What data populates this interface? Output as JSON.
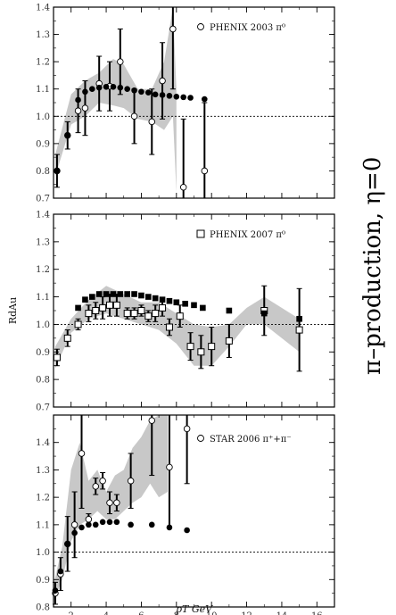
{
  "side_title": "π–production, η=0",
  "chart_data": [
    {
      "type": "scatter",
      "title": "",
      "legend_label": "PHENIX 2003 π⁰",
      "legend_marker": "open-circle",
      "legend_position": "top-right",
      "ylabel": "",
      "ylim": [
        0.7,
        1.4
      ],
      "xlim": [
        1,
        17
      ],
      "yticks": [
        0.7,
        0.8,
        0.9,
        1.0,
        1.1,
        1.2,
        1.3,
        1.4
      ],
      "reference_line": 1.0,
      "band": [
        [
          1.1,
          0.78,
          0.86
        ],
        [
          2.0,
          0.97,
          1.08
        ],
        [
          2.8,
          1.0,
          1.13
        ],
        [
          3.6,
          1.05,
          1.16
        ],
        [
          4.4,
          1.04,
          1.21
        ],
        [
          5.0,
          1.03,
          1.19
        ],
        [
          5.8,
          0.99,
          1.1
        ],
        [
          6.6,
          0.98,
          1.1
        ],
        [
          7.3,
          0.95,
          1.2
        ],
        [
          7.8,
          1.0,
          1.4
        ],
        [
          8.0,
          0.72,
          1.1
        ]
      ],
      "series": [
        {
          "marker": "open-circle",
          "points": [
            [
              1.2,
              0.8,
              0.06
            ],
            [
              1.8,
              0.93,
              0.05
            ],
            [
              2.4,
              1.02,
              0.08
            ],
            [
              2.8,
              1.03,
              0.1
            ],
            [
              3.6,
              1.12,
              0.1
            ],
            [
              4.2,
              1.11,
              0.09
            ],
            [
              4.8,
              1.2,
              0.12
            ],
            [
              5.6,
              1.0,
              0.1
            ],
            [
              6.6,
              0.98,
              0.12
            ],
            [
              7.2,
              1.13,
              0.14
            ],
            [
              7.8,
              1.32,
              0.22
            ],
            [
              8.4,
              0.74,
              0.25
            ],
            [
              9.6,
              0.8,
              0.25
            ]
          ]
        },
        {
          "marker": "filled-circle",
          "points": [
            [
              1.2,
              0.8
            ],
            [
              1.8,
              0.93
            ],
            [
              2.4,
              1.06
            ],
            [
              2.8,
              1.09
            ],
            [
              3.2,
              1.1
            ],
            [
              3.6,
              1.105
            ],
            [
              4.0,
              1.108
            ],
            [
              4.4,
              1.108
            ],
            [
              4.8,
              1.105
            ],
            [
              5.2,
              1.1
            ],
            [
              5.6,
              1.095
            ],
            [
              6.0,
              1.09
            ],
            [
              6.4,
              1.087
            ],
            [
              6.8,
              1.08
            ],
            [
              7.2,
              1.078
            ],
            [
              7.6,
              1.075
            ],
            [
              8.0,
              1.072
            ],
            [
              8.4,
              1.07
            ],
            [
              8.8,
              1.068
            ],
            [
              9.6,
              1.063
            ]
          ]
        }
      ]
    },
    {
      "type": "scatter",
      "title": "",
      "legend_label": "PHENIX 2007 π⁰",
      "legend_marker": "open-square",
      "legend_position": "top-right",
      "ylabel": "RdAu",
      "ylim": [
        0.7,
        1.4
      ],
      "xlim": [
        1,
        17
      ],
      "yticks": [
        0.7,
        0.8,
        0.9,
        1.0,
        1.1,
        1.2,
        1.3,
        1.4
      ],
      "reference_line": 1.0,
      "band": [
        [
          1.1,
          0.84,
          0.92
        ],
        [
          2.0,
          0.97,
          1.02
        ],
        [
          3.0,
          1.02,
          1.09
        ],
        [
          4.0,
          1.04,
          1.14
        ],
        [
          5.0,
          1.02,
          1.11
        ],
        [
          6.0,
          1.0,
          1.08
        ],
        [
          7.0,
          0.98,
          1.08
        ],
        [
          8.0,
          0.93,
          1.04
        ],
        [
          9.0,
          0.85,
          1.0
        ],
        [
          10.0,
          0.85,
          0.99
        ],
        [
          11.0,
          0.92,
          1.0
        ],
        [
          12.0,
          1.0,
          1.06
        ],
        [
          13.0,
          1.0,
          1.1
        ],
        [
          15.0,
          0.9,
          1.02
        ]
      ],
      "series": [
        {
          "marker": "open-square",
          "points": [
            [
              1.2,
              0.88,
              0.03
            ],
            [
              1.8,
              0.95,
              0.03
            ],
            [
              2.4,
              1.0,
              0.02
            ],
            [
              3.0,
              1.04,
              0.03
            ],
            [
              3.4,
              1.05,
              0.03
            ],
            [
              3.8,
              1.06,
              0.04
            ],
            [
              4.2,
              1.07,
              0.04
            ],
            [
              4.6,
              1.07,
              0.04
            ],
            [
              5.2,
              1.04,
              0.02
            ],
            [
              5.6,
              1.04,
              0.02
            ],
            [
              6.0,
              1.05,
              0.02
            ],
            [
              6.4,
              1.03,
              0.02
            ],
            [
              6.8,
              1.04,
              0.03
            ],
            [
              7.2,
              1.06,
              0.03
            ],
            [
              7.6,
              0.99,
              0.03
            ],
            [
              8.2,
              1.03,
              0.04
            ],
            [
              8.8,
              0.92,
              0.05
            ],
            [
              9.4,
              0.9,
              0.06
            ],
            [
              10.0,
              0.92,
              0.07
            ],
            [
              11.0,
              0.94,
              0.06
            ],
            [
              13.0,
              1.05,
              0.09
            ],
            [
              15.0,
              0.98,
              0.15
            ]
          ]
        },
        {
          "marker": "filled-square",
          "points": [
            [
              2.4,
              1.06
            ],
            [
              2.8,
              1.09
            ],
            [
              3.2,
              1.1
            ],
            [
              3.6,
              1.11
            ],
            [
              4.0,
              1.11
            ],
            [
              4.4,
              1.11
            ],
            [
              4.8,
              1.11
            ],
            [
              5.2,
              1.11
            ],
            [
              5.6,
              1.11
            ],
            [
              6.0,
              1.105
            ],
            [
              6.4,
              1.1
            ],
            [
              6.8,
              1.095
            ],
            [
              7.2,
              1.09
            ],
            [
              7.6,
              1.085
            ],
            [
              8.0,
              1.08
            ],
            [
              8.5,
              1.075
            ],
            [
              9.0,
              1.07
            ],
            [
              9.5,
              1.06
            ],
            [
              11.0,
              1.05
            ],
            [
              13.0,
              1.04
            ],
            [
              15.0,
              1.02
            ]
          ]
        }
      ]
    },
    {
      "type": "scatter",
      "title": "",
      "legend_label": "STAR 2006 π⁺+π⁻",
      "legend_marker": "open-circle",
      "legend_position": "top-right",
      "ylabel": "",
      "xlabel": "pT GeV",
      "ylim": [
        0.8,
        1.5
      ],
      "xlim": [
        1,
        17
      ],
      "xticks": [
        2,
        4,
        6,
        8,
        10,
        12,
        14,
        16
      ],
      "yticks": [
        0.8,
        0.9,
        1.0,
        1.1,
        1.2,
        1.3,
        1.4
      ],
      "reference_line": 1.0,
      "band": [
        [
          1.0,
          0.82,
          0.88
        ],
        [
          1.5,
          0.9,
          1.02
        ],
        [
          2.0,
          1.04,
          1.3
        ],
        [
          2.5,
          1.1,
          1.4
        ],
        [
          3.0,
          1.12,
          1.26
        ],
        [
          3.5,
          1.15,
          1.3
        ],
        [
          4.0,
          1.12,
          1.22
        ],
        [
          4.5,
          1.12,
          1.28
        ],
        [
          5.0,
          1.15,
          1.3
        ],
        [
          5.5,
          1.18,
          1.38
        ],
        [
          6.0,
          1.2,
          1.42
        ],
        [
          6.5,
          1.25,
          1.48
        ],
        [
          7.0,
          1.2,
          1.5
        ],
        [
          7.5,
          1.22,
          1.5
        ]
      ],
      "series": [
        {
          "marker": "open-circle",
          "points": [
            [
              1.1,
              0.85,
              0.04
            ],
            [
              1.4,
              0.92,
              0.06
            ],
            [
              1.8,
              1.03,
              0.1
            ],
            [
              2.2,
              1.1,
              0.12
            ],
            [
              2.6,
              1.36,
              0.2
            ],
            [
              3.0,
              1.12,
              0.02
            ],
            [
              3.4,
              1.24,
              0.03
            ],
            [
              3.8,
              1.26,
              0.03
            ],
            [
              4.2,
              1.18,
              0.04
            ],
            [
              4.6,
              1.18,
              0.03
            ],
            [
              5.4,
              1.26,
              0.1
            ],
            [
              6.6,
              1.48,
              0.2
            ],
            [
              7.6,
              1.31,
              0.22
            ],
            [
              8.6,
              1.45,
              0.2
            ]
          ]
        },
        {
          "marker": "filled-circle",
          "points": [
            [
              1.1,
              0.86
            ],
            [
              1.4,
              0.93
            ],
            [
              1.8,
              1.03
            ],
            [
              2.2,
              1.07
            ],
            [
              2.6,
              1.09
            ],
            [
              3.0,
              1.1
            ],
            [
              3.4,
              1.1
            ],
            [
              3.8,
              1.11
            ],
            [
              4.2,
              1.11
            ],
            [
              4.6,
              1.11
            ],
            [
              5.4,
              1.1
            ],
            [
              6.6,
              1.1
            ],
            [
              7.6,
              1.09
            ],
            [
              8.6,
              1.08
            ]
          ]
        }
      ]
    }
  ]
}
